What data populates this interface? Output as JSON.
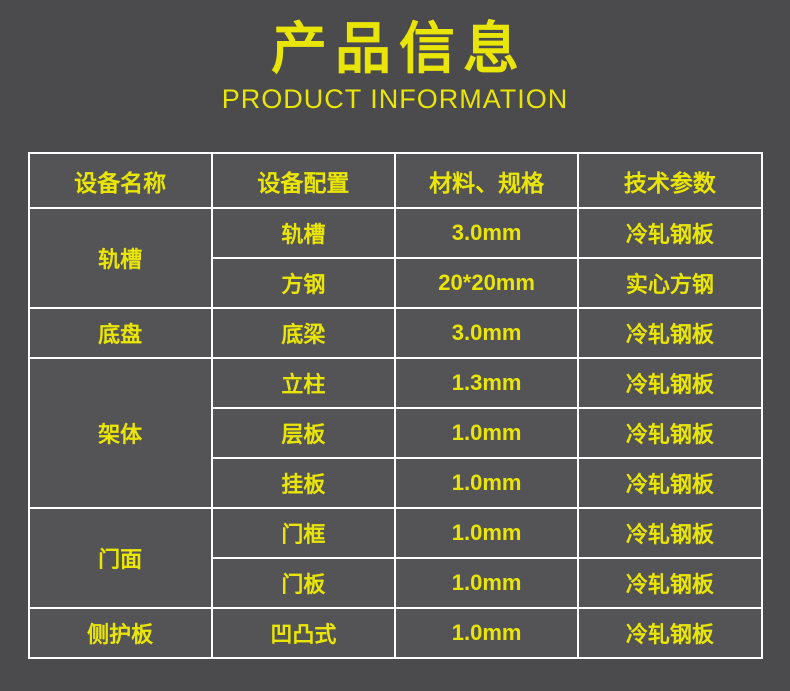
{
  "page": {
    "background_color": "#4b4b4d",
    "cell_background_color": "#545456",
    "accent_color": "#e9e506",
    "border_color": "#ffffff"
  },
  "header": {
    "title_cn": "产品信息",
    "title_en": "PRODUCT INFORMATION"
  },
  "table": {
    "columns": [
      "设备名称",
      "设备配置",
      "材料、规格",
      "技术参数"
    ],
    "groups": [
      {
        "name": "轨槽",
        "rows": [
          [
            "轨槽",
            "3.0mm",
            "冷轧钢板"
          ],
          [
            "方钢",
            "20*20mm",
            "实心方钢"
          ]
        ]
      },
      {
        "name": "底盘",
        "rows": [
          [
            "底梁",
            "3.0mm",
            "冷轧钢板"
          ]
        ]
      },
      {
        "name": "架体",
        "rows": [
          [
            "立柱",
            "1.3mm",
            "冷轧钢板"
          ],
          [
            "层板",
            "1.0mm",
            "冷轧钢板"
          ],
          [
            "挂板",
            "1.0mm",
            "冷轧钢板"
          ]
        ]
      },
      {
        "name": "门面",
        "rows": [
          [
            "门框",
            "1.0mm",
            "冷轧钢板"
          ],
          [
            "门板",
            "1.0mm",
            "冷轧钢板"
          ]
        ]
      },
      {
        "name": "侧护板",
        "rows": [
          [
            "凹凸式",
            "1.0mm",
            "冷轧钢板"
          ]
        ]
      }
    ]
  }
}
